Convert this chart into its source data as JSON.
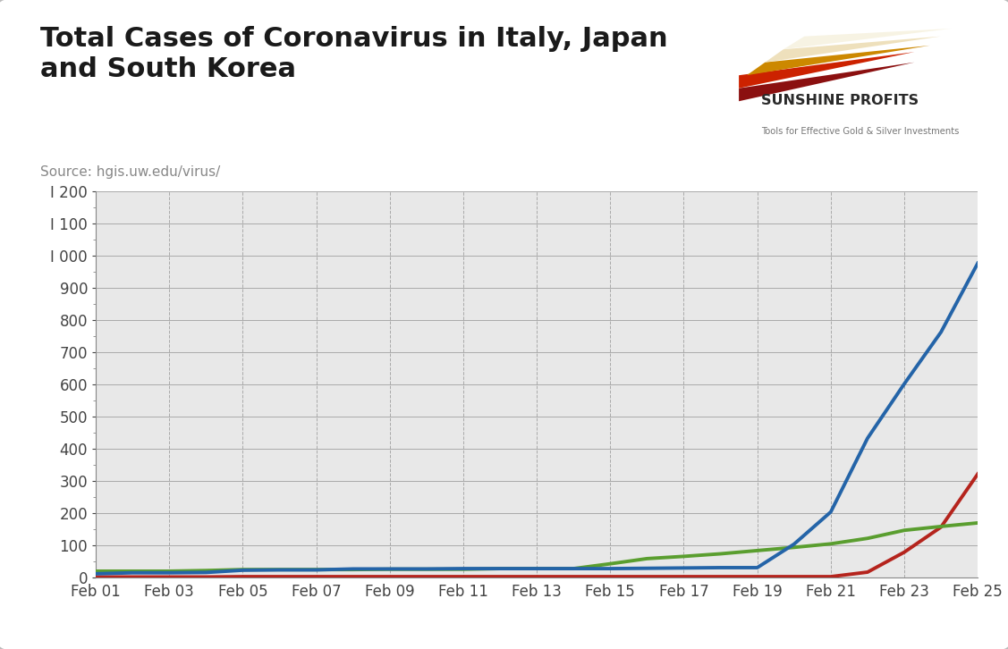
{
  "title": "Total Cases of Coronavirus in Italy, Japan\nand South Korea",
  "source": "Source: hgis.uw.edu/virus/",
  "dates": [
    1,
    2,
    3,
    4,
    5,
    6,
    7,
    8,
    9,
    10,
    11,
    12,
    13,
    14,
    15,
    16,
    17,
    18,
    19,
    20,
    21,
    22,
    23,
    24,
    25
  ],
  "italy": [
    2,
    2,
    2,
    2,
    3,
    3,
    3,
    3,
    3,
    3,
    3,
    3,
    3,
    3,
    3,
    3,
    3,
    3,
    3,
    3,
    3,
    17,
    79,
    157,
    322
  ],
  "japan": [
    20,
    20,
    20,
    22,
    25,
    25,
    25,
    25,
    26,
    26,
    26,
    28,
    28,
    28,
    43,
    59,
    66,
    74,
    84,
    94,
    105,
    122,
    147,
    159,
    170
  ],
  "south_korea": [
    12,
    15,
    15,
    16,
    23,
    24,
    24,
    27,
    27,
    27,
    28,
    28,
    28,
    28,
    28,
    29,
    30,
    31,
    31,
    104,
    204,
    433,
    602,
    763,
    977
  ],
  "italy_color": "#b5241d",
  "japan_color": "#5a9e2f",
  "south_korea_color": "#2464a8",
  "background_color": "#e8e8e8",
  "outer_background": "#ffffff",
  "ylim": [
    0,
    1200
  ],
  "yticks": [
    0,
    100,
    200,
    300,
    400,
    500,
    600,
    700,
    800,
    900,
    1000,
    1100,
    1200
  ],
  "xtick_labels": [
    "Feb 01",
    "Feb 03",
    "Feb 05",
    "Feb 07",
    "Feb 09",
    "Feb 11",
    "Feb 13",
    "Feb 15",
    "Feb 17",
    "Feb 19",
    "Feb 21",
    "Feb 23",
    "Feb 25"
  ],
  "xtick_positions": [
    1,
    3,
    5,
    7,
    9,
    11,
    13,
    15,
    17,
    19,
    21,
    23,
    25
  ],
  "line_width": 2.8,
  "title_fontsize": 22,
  "source_fontsize": 11,
  "tick_fontsize": 12,
  "grid_color_h": "#aaaaaa",
  "grid_color_v": "#aaaaaa"
}
